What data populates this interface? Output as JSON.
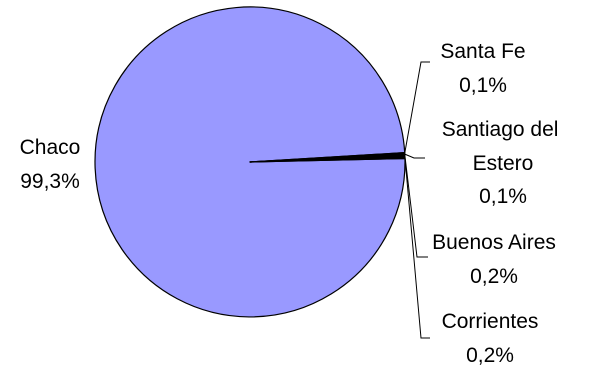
{
  "chart_data": {
    "type": "pie",
    "title": "",
    "slices": [
      {
        "label": "Chaco",
        "value": 99.3,
        "value_label": "99,3%",
        "color": "#9999ff"
      },
      {
        "label": "Santa Fe",
        "value": 0.1,
        "value_label": "0,1%",
        "color": "#000000"
      },
      {
        "label": "Santiago del Estero",
        "value": 0.1,
        "value_label": "0,1%",
        "color": "#000000"
      },
      {
        "label": "Buenos Aires",
        "value": 0.2,
        "value_label": "0,2%",
        "color": "#000000"
      },
      {
        "label": "Corrientes",
        "value": 0.2,
        "value_label": "0,2%",
        "color": "#000000"
      }
    ],
    "legend": "none",
    "background": "#ffffff"
  }
}
